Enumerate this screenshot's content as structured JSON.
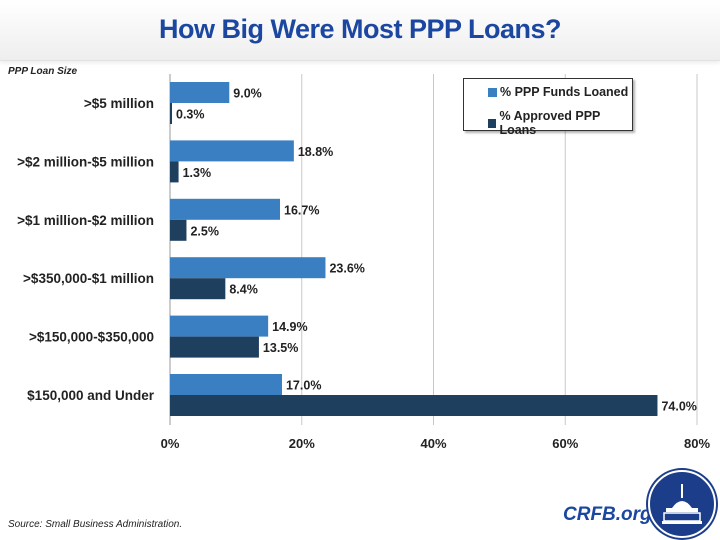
{
  "header": {
    "title": "How Big Were Most PPP Loans?"
  },
  "footer": {
    "source": "Source: Small Business Administration.",
    "brand": "CRFB.org"
  },
  "colors": {
    "funds": "#3a7fc1",
    "approved": "#1f3f5f",
    "title": "#1b47a1",
    "grid": "#c8c8c8"
  },
  "chart_data": {
    "type": "bar",
    "orientation": "horizontal",
    "title": "How Big Were Most PPP Loans?",
    "ylabel": "PPP Loan Size",
    "xlabel": "",
    "categories": [
      ">$5 million",
      ">$2 million-$5 million",
      ">$1 million-$2 million",
      ">$350,000-$1 million",
      ">$150,000-$350,000",
      "$150,000 and Under"
    ],
    "series": [
      {
        "name": "% PPP Funds Loaned",
        "values": [
          9.0,
          18.8,
          16.7,
          23.6,
          14.9,
          17.0
        ],
        "labels": [
          "9.0%",
          "18.8%",
          "16.7%",
          "23.6%",
          "14.9%",
          "17.0%"
        ]
      },
      {
        "name": "% Approved PPP Loans",
        "values": [
          0.3,
          1.3,
          2.5,
          8.4,
          13.5,
          74.0
        ],
        "labels": [
          "0.3%",
          "1.3%",
          "2.5%",
          "8.4%",
          "13.5%",
          "74.0%"
        ]
      }
    ],
    "xlim": [
      0,
      80
    ],
    "xticks": [
      0,
      20,
      40,
      60,
      80
    ],
    "xtick_labels": [
      "0%",
      "20%",
      "40%",
      "60%",
      "80%"
    ],
    "grid": true,
    "legend_position": "top-right"
  }
}
